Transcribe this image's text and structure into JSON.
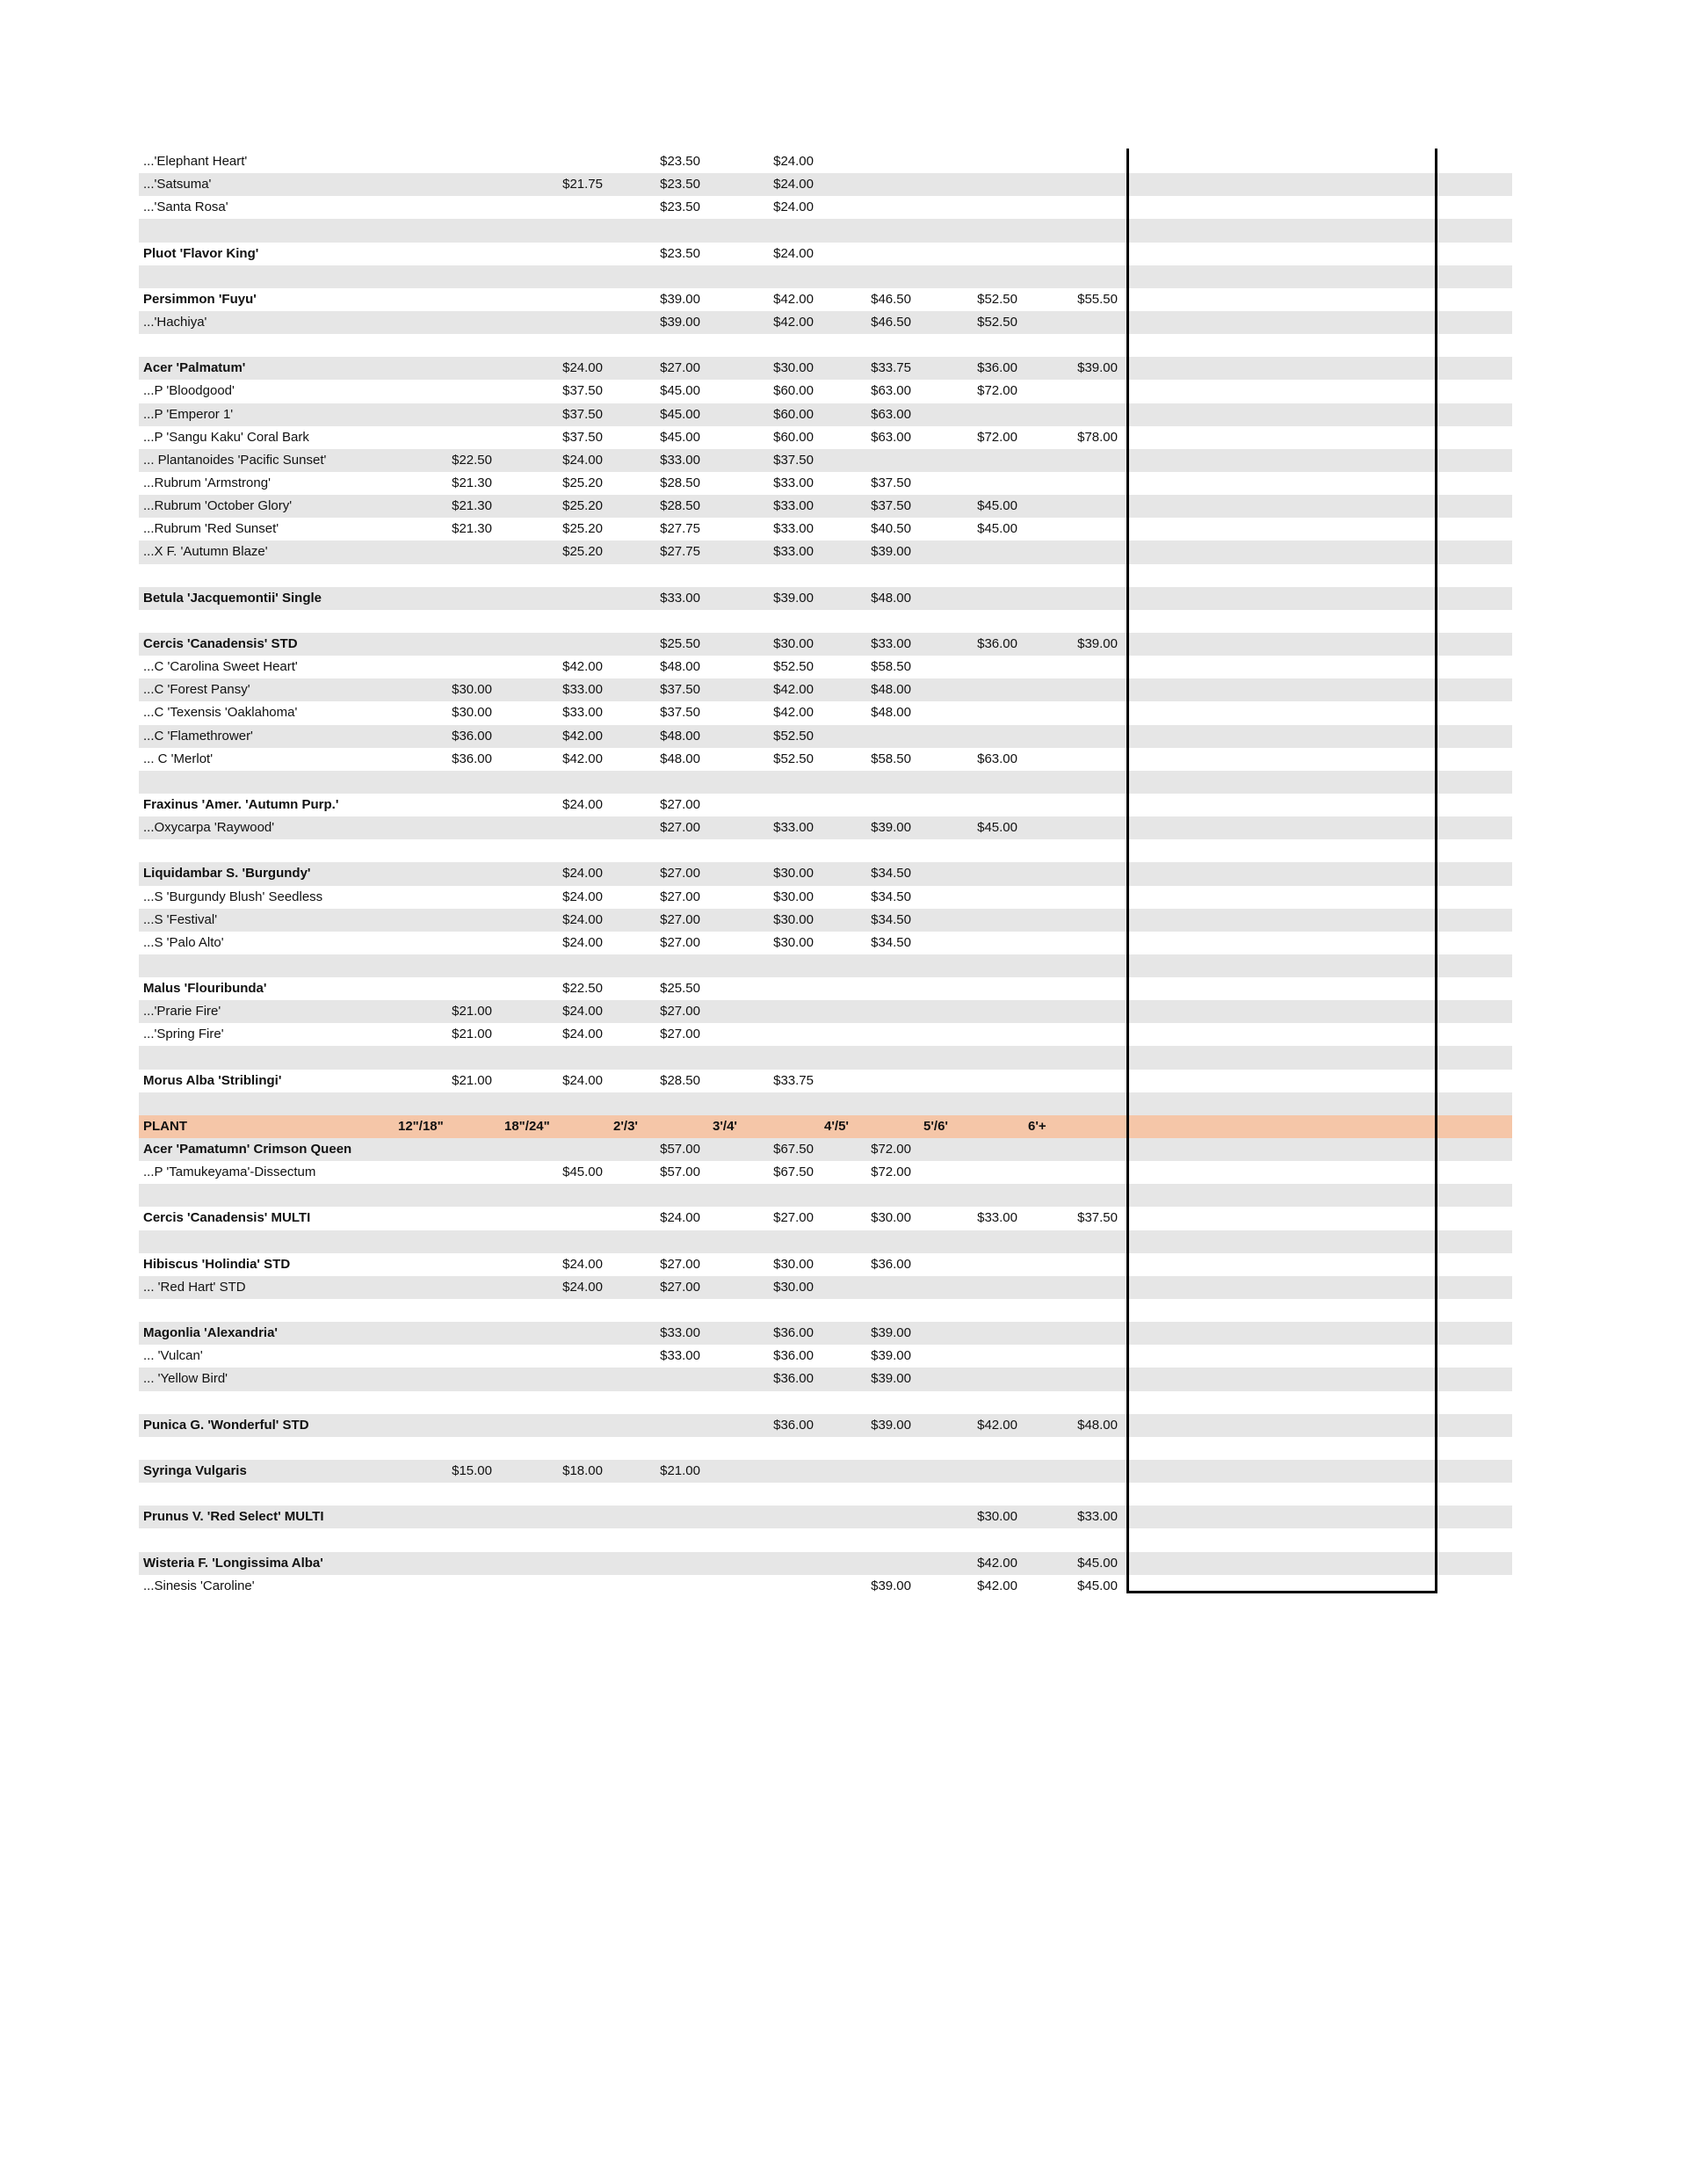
{
  "colors": {
    "row_shade": "#e6e6e6",
    "header_bg": "#f5c6a8"
  },
  "header": {
    "plant": "PLANT",
    "sizes": [
      "12\"/18\"",
      "18\"/24\"",
      "2'/3'",
      "3'/4'",
      "4'/5'",
      "5'/6'",
      "6'+"
    ]
  },
  "rows_before": [
    {
      "plant": "...'Elephant Heart'",
      "bold": false,
      "prices": [
        "",
        "",
        "$23.50",
        "$24.00",
        "",
        "",
        ""
      ]
    },
    {
      "plant": "...'Satsuma'",
      "bold": false,
      "prices": [
        "",
        "$21.75",
        "$23.50",
        "$24.00",
        "",
        "",
        ""
      ]
    },
    {
      "plant": "...'Santa Rosa'",
      "bold": false,
      "prices": [
        "",
        "",
        "$23.50",
        "$24.00",
        "",
        "",
        ""
      ]
    },
    {
      "plant": "",
      "bold": false,
      "prices": [
        "",
        "",
        "",
        "",
        "",
        "",
        ""
      ]
    },
    {
      "plant": "Pluot 'Flavor King'",
      "bold": true,
      "prices": [
        "",
        "",
        "$23.50",
        "$24.00",
        "",
        "",
        ""
      ]
    },
    {
      "plant": "",
      "bold": false,
      "prices": [
        "",
        "",
        "",
        "",
        "",
        "",
        ""
      ]
    },
    {
      "plant": "Persimmon 'Fuyu'",
      "bold": true,
      "prices": [
        "",
        "",
        "$39.00",
        "$42.00",
        "$46.50",
        "$52.50",
        "$55.50"
      ]
    },
    {
      "plant": "...'Hachiya'",
      "bold": false,
      "prices": [
        "",
        "",
        "$39.00",
        "$42.00",
        "$46.50",
        "$52.50",
        ""
      ]
    },
    {
      "plant": "",
      "bold": false,
      "prices": [
        "",
        "",
        "",
        "",
        "",
        "",
        ""
      ]
    },
    {
      "plant": "Acer 'Palmatum'",
      "bold": true,
      "prices": [
        "",
        "$24.00",
        "$27.00",
        "$30.00",
        "$33.75",
        "$36.00",
        "$39.00"
      ]
    },
    {
      "plant": "...P 'Bloodgood'",
      "bold": false,
      "prices": [
        "",
        "$37.50",
        "$45.00",
        "$60.00",
        "$63.00",
        "$72.00",
        ""
      ]
    },
    {
      "plant": "...P 'Emperor 1'",
      "bold": false,
      "prices": [
        "",
        "$37.50",
        "$45.00",
        "$60.00",
        "$63.00",
        "",
        ""
      ]
    },
    {
      "plant": "...P 'Sangu Kaku' Coral Bark",
      "bold": false,
      "prices": [
        "",
        "$37.50",
        "$45.00",
        "$60.00",
        "$63.00",
        "$72.00",
        "$78.00"
      ]
    },
    {
      "plant": "... Plantanoides 'Pacific Sunset'",
      "bold": false,
      "prices": [
        "$22.50",
        "$24.00",
        "$33.00",
        "$37.50",
        "",
        "",
        ""
      ]
    },
    {
      "plant": "...Rubrum 'Armstrong'",
      "bold": false,
      "prices": [
        "$21.30",
        "$25.20",
        "$28.50",
        "$33.00",
        "$37.50",
        "",
        ""
      ]
    },
    {
      "plant": "...Rubrum 'October Glory'",
      "bold": false,
      "prices": [
        "$21.30",
        "$25.20",
        "$28.50",
        "$33.00",
        "$37.50",
        "$45.00",
        ""
      ]
    },
    {
      "plant": "...Rubrum 'Red Sunset'",
      "bold": false,
      "prices": [
        "$21.30",
        "$25.20",
        "$27.75",
        "$33.00",
        "$40.50",
        "$45.00",
        ""
      ]
    },
    {
      "plant": "...X F. 'Autumn Blaze'",
      "bold": false,
      "prices": [
        "",
        "$25.20",
        "$27.75",
        "$33.00",
        "$39.00",
        "",
        ""
      ]
    },
    {
      "plant": "",
      "bold": false,
      "prices": [
        "",
        "",
        "",
        "",
        "",
        "",
        ""
      ]
    },
    {
      "plant": "Betula 'Jacquemontii' Single",
      "bold": true,
      "prices": [
        "",
        "",
        "$33.00",
        "$39.00",
        "$48.00",
        "",
        ""
      ]
    },
    {
      "plant": "",
      "bold": false,
      "prices": [
        "",
        "",
        "",
        "",
        "",
        "",
        ""
      ]
    },
    {
      "plant": "Cercis 'Canadensis' STD",
      "bold": true,
      "prices": [
        "",
        "",
        "$25.50",
        "$30.00",
        "$33.00",
        "$36.00",
        "$39.00"
      ]
    },
    {
      "plant": "...C 'Carolina Sweet Heart'",
      "bold": false,
      "prices": [
        "",
        "$42.00",
        "$48.00",
        "$52.50",
        "$58.50",
        "",
        ""
      ]
    },
    {
      "plant": "...C 'Forest Pansy'",
      "bold": false,
      "prices": [
        "$30.00",
        "$33.00",
        "$37.50",
        "$42.00",
        "$48.00",
        "",
        ""
      ]
    },
    {
      "plant": "...C 'Texensis 'Oaklahoma'",
      "bold": false,
      "prices": [
        "$30.00",
        "$33.00",
        "$37.50",
        "$42.00",
        "$48.00",
        "",
        ""
      ]
    },
    {
      "plant": "...C 'Flamethrower'",
      "bold": false,
      "prices": [
        "$36.00",
        "$42.00",
        "$48.00",
        "$52.50",
        "",
        "",
        ""
      ]
    },
    {
      "plant": "... C 'Merlot'",
      "bold": false,
      "prices": [
        "$36.00",
        "$42.00",
        "$48.00",
        "$52.50",
        "$58.50",
        "$63.00",
        ""
      ]
    },
    {
      "plant": "",
      "bold": false,
      "prices": [
        "",
        "",
        "",
        "",
        "",
        "",
        ""
      ]
    },
    {
      "plant": "Fraxinus 'Amer. 'Autumn Purp.'",
      "bold": true,
      "prices": [
        "",
        "$24.00",
        "$27.00",
        "",
        "",
        "",
        ""
      ]
    },
    {
      "plant": "...Oxycarpa 'Raywood'",
      "bold": false,
      "prices": [
        "",
        "",
        "$27.00",
        "$33.00",
        "$39.00",
        "$45.00",
        ""
      ]
    },
    {
      "plant": "",
      "bold": false,
      "prices": [
        "",
        "",
        "",
        "",
        "",
        "",
        ""
      ]
    },
    {
      "plant": "Liquidambar S. 'Burgundy'",
      "bold": true,
      "prices": [
        "",
        "$24.00",
        "$27.00",
        "$30.00",
        "$34.50",
        "",
        ""
      ]
    },
    {
      "plant": "...S 'Burgundy Blush' Seedless",
      "bold": false,
      "prices": [
        "",
        "$24.00",
        "$27.00",
        "$30.00",
        "$34.50",
        "",
        ""
      ]
    },
    {
      "plant": "...S 'Festival'",
      "bold": false,
      "prices": [
        "",
        "$24.00",
        "$27.00",
        "$30.00",
        "$34.50",
        "",
        ""
      ]
    },
    {
      "plant": "...S 'Palo Alto'",
      "bold": false,
      "prices": [
        "",
        "$24.00",
        "$27.00",
        "$30.00",
        "$34.50",
        "",
        ""
      ]
    },
    {
      "plant": "",
      "bold": false,
      "prices": [
        "",
        "",
        "",
        "",
        "",
        "",
        ""
      ]
    },
    {
      "plant": "Malus 'Flouribunda'",
      "bold": true,
      "prices": [
        "",
        "$22.50",
        "$25.50",
        "",
        "",
        "",
        ""
      ]
    },
    {
      "plant": "...'Prarie Fire'",
      "bold": false,
      "prices": [
        "$21.00",
        "$24.00",
        "$27.00",
        "",
        "",
        "",
        ""
      ]
    },
    {
      "plant": "...'Spring Fire'",
      "bold": false,
      "prices": [
        "$21.00",
        "$24.00",
        "$27.00",
        "",
        "",
        "",
        ""
      ]
    },
    {
      "plant": "",
      "bold": false,
      "prices": [
        "",
        "",
        "",
        "",
        "",
        "",
        ""
      ]
    },
    {
      "plant": "Morus Alba 'Striblingi'",
      "bold": true,
      "prices": [
        "$21.00",
        "$24.00",
        "$28.50",
        "$33.75",
        "",
        "",
        ""
      ]
    },
    {
      "plant": "",
      "bold": false,
      "prices": [
        "",
        "",
        "",
        "",
        "",
        "",
        ""
      ]
    }
  ],
  "rows_after": [
    {
      "plant": "Acer 'Pamatumn' Crimson Queen",
      "bold": true,
      "prices": [
        "",
        "",
        "$57.00",
        "$67.50",
        "$72.00",
        "",
        ""
      ]
    },
    {
      "plant": "...P 'Tamukeyama'-Dissectum",
      "bold": false,
      "prices": [
        "",
        "$45.00",
        "$57.00",
        "$67.50",
        "$72.00",
        "",
        ""
      ]
    },
    {
      "plant": "",
      "bold": false,
      "prices": [
        "",
        "",
        "",
        "",
        "",
        "",
        ""
      ]
    },
    {
      "plant": "Cercis 'Canadensis' MULTI",
      "bold": true,
      "prices": [
        "",
        "",
        "$24.00",
        "$27.00",
        "$30.00",
        "$33.00",
        "$37.50"
      ]
    },
    {
      "plant": "",
      "bold": false,
      "prices": [
        "",
        "",
        "",
        "",
        "",
        "",
        ""
      ]
    },
    {
      "plant": "Hibiscus 'Holindia' STD",
      "bold": true,
      "prices": [
        "",
        "$24.00",
        "$27.00",
        "$30.00",
        "$36.00",
        "",
        ""
      ]
    },
    {
      "plant": "... 'Red Hart' STD",
      "bold": false,
      "prices": [
        "",
        "$24.00",
        "$27.00",
        "$30.00",
        "",
        "",
        ""
      ]
    },
    {
      "plant": "",
      "bold": false,
      "prices": [
        "",
        "",
        "",
        "",
        "",
        "",
        ""
      ]
    },
    {
      "plant": "Magonlia 'Alexandria'",
      "bold": true,
      "prices": [
        "",
        "",
        "$33.00",
        "$36.00",
        "$39.00",
        "",
        ""
      ]
    },
    {
      "plant": "... 'Vulcan'",
      "bold": false,
      "prices": [
        "",
        "",
        "$33.00",
        "$36.00",
        "$39.00",
        "",
        ""
      ]
    },
    {
      "plant": "... 'Yellow Bird'",
      "bold": false,
      "prices": [
        "",
        "",
        "",
        "$36.00",
        "$39.00",
        "",
        ""
      ]
    },
    {
      "plant": "",
      "bold": false,
      "prices": [
        "",
        "",
        "",
        "",
        "",
        "",
        ""
      ]
    },
    {
      "plant": "Punica G. 'Wonderful' STD",
      "bold": true,
      "prices": [
        "",
        "",
        "",
        "$36.00",
        "$39.00",
        "$42.00",
        "$48.00"
      ]
    },
    {
      "plant": "",
      "bold": false,
      "prices": [
        "",
        "",
        "",
        "",
        "",
        "",
        ""
      ]
    },
    {
      "plant": "Syringa Vulgaris",
      "bold": true,
      "prices": [
        "$15.00",
        "$18.00",
        "$21.00",
        "",
        "",
        "",
        ""
      ]
    },
    {
      "plant": "",
      "bold": false,
      "prices": [
        "",
        "",
        "",
        "",
        "",
        "",
        ""
      ]
    },
    {
      "plant": "Prunus V. 'Red Select' MULTI",
      "bold": true,
      "prices": [
        "",
        "",
        "",
        "",
        "",
        "$30.00",
        "$33.00"
      ]
    },
    {
      "plant": "",
      "bold": false,
      "prices": [
        "",
        "",
        "",
        "",
        "",
        "",
        ""
      ]
    },
    {
      "plant": "Wisteria F. 'Longissima Alba'",
      "bold": true,
      "prices": [
        "",
        "",
        "",
        "",
        "",
        "$42.00",
        "$45.00"
      ]
    },
    {
      "plant": "...Sinesis 'Caroline'",
      "bold": false,
      "prices": [
        "",
        "",
        "",
        "",
        "$39.00",
        "$42.00",
        "$45.00"
      ]
    }
  ]
}
